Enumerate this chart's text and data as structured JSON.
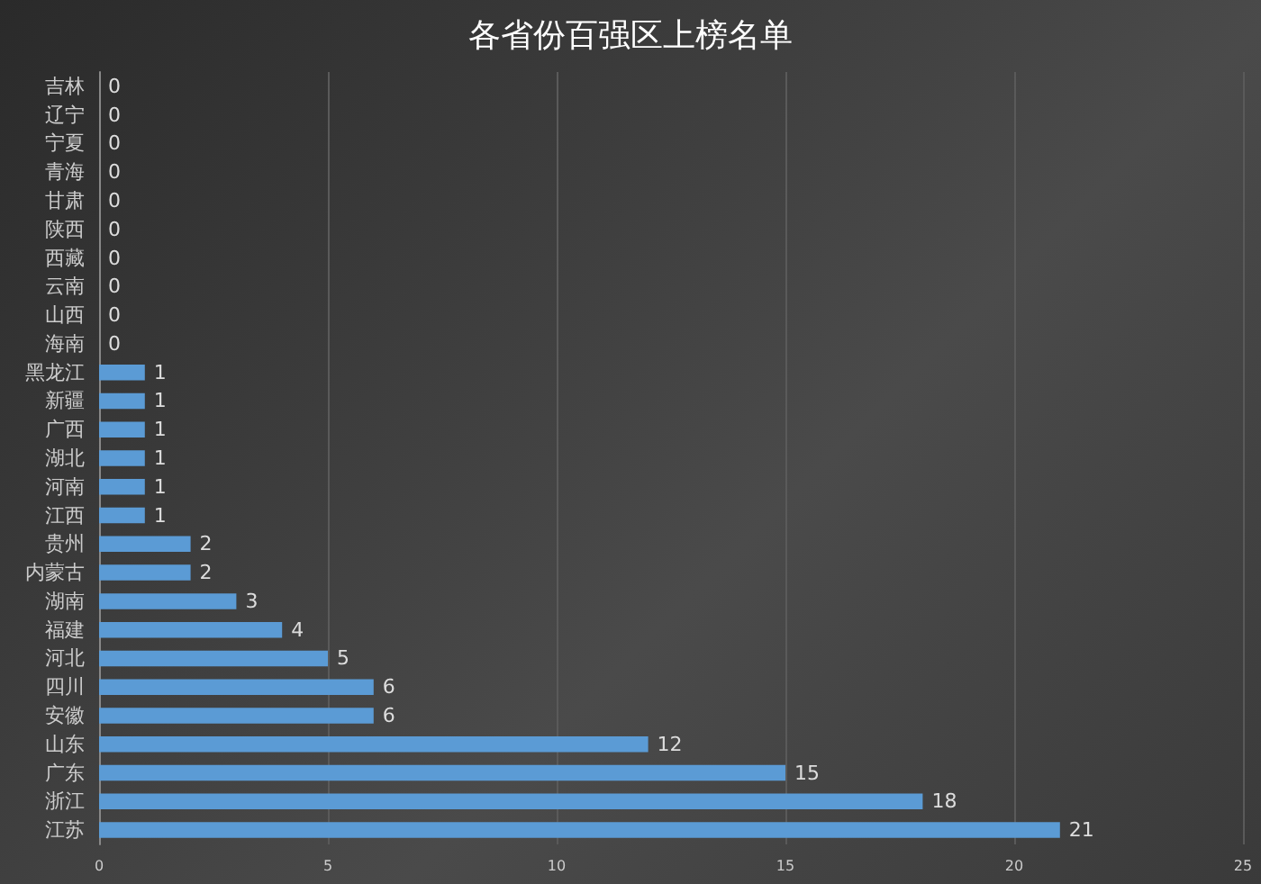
{
  "chart_data": {
    "type": "bar",
    "orientation": "horizontal",
    "title": "各省份百强区上榜名单",
    "categories": [
      "吉林",
      "辽宁",
      "宁夏",
      "青海",
      "甘肃",
      "陕西",
      "西藏",
      "云南",
      "山西",
      "海南",
      "黑龙江",
      "新疆",
      "广西",
      "湖北",
      "河南",
      "江西",
      "贵州",
      "内蒙古",
      "湖南",
      "福建",
      "河北",
      "四川",
      "安徽",
      "山东",
      "广东",
      "浙江",
      "江苏"
    ],
    "values": [
      0,
      0,
      0,
      0,
      0,
      0,
      0,
      0,
      0,
      0,
      1,
      1,
      1,
      1,
      1,
      1,
      2,
      2,
      3,
      4,
      5,
      6,
      6,
      12,
      15,
      18,
      21
    ],
    "color": "#5b9bd5",
    "xlim": [
      0,
      25
    ],
    "xticks": [
      0,
      5,
      10,
      15,
      20,
      25
    ],
    "grid": "x",
    "data_labels": true
  }
}
